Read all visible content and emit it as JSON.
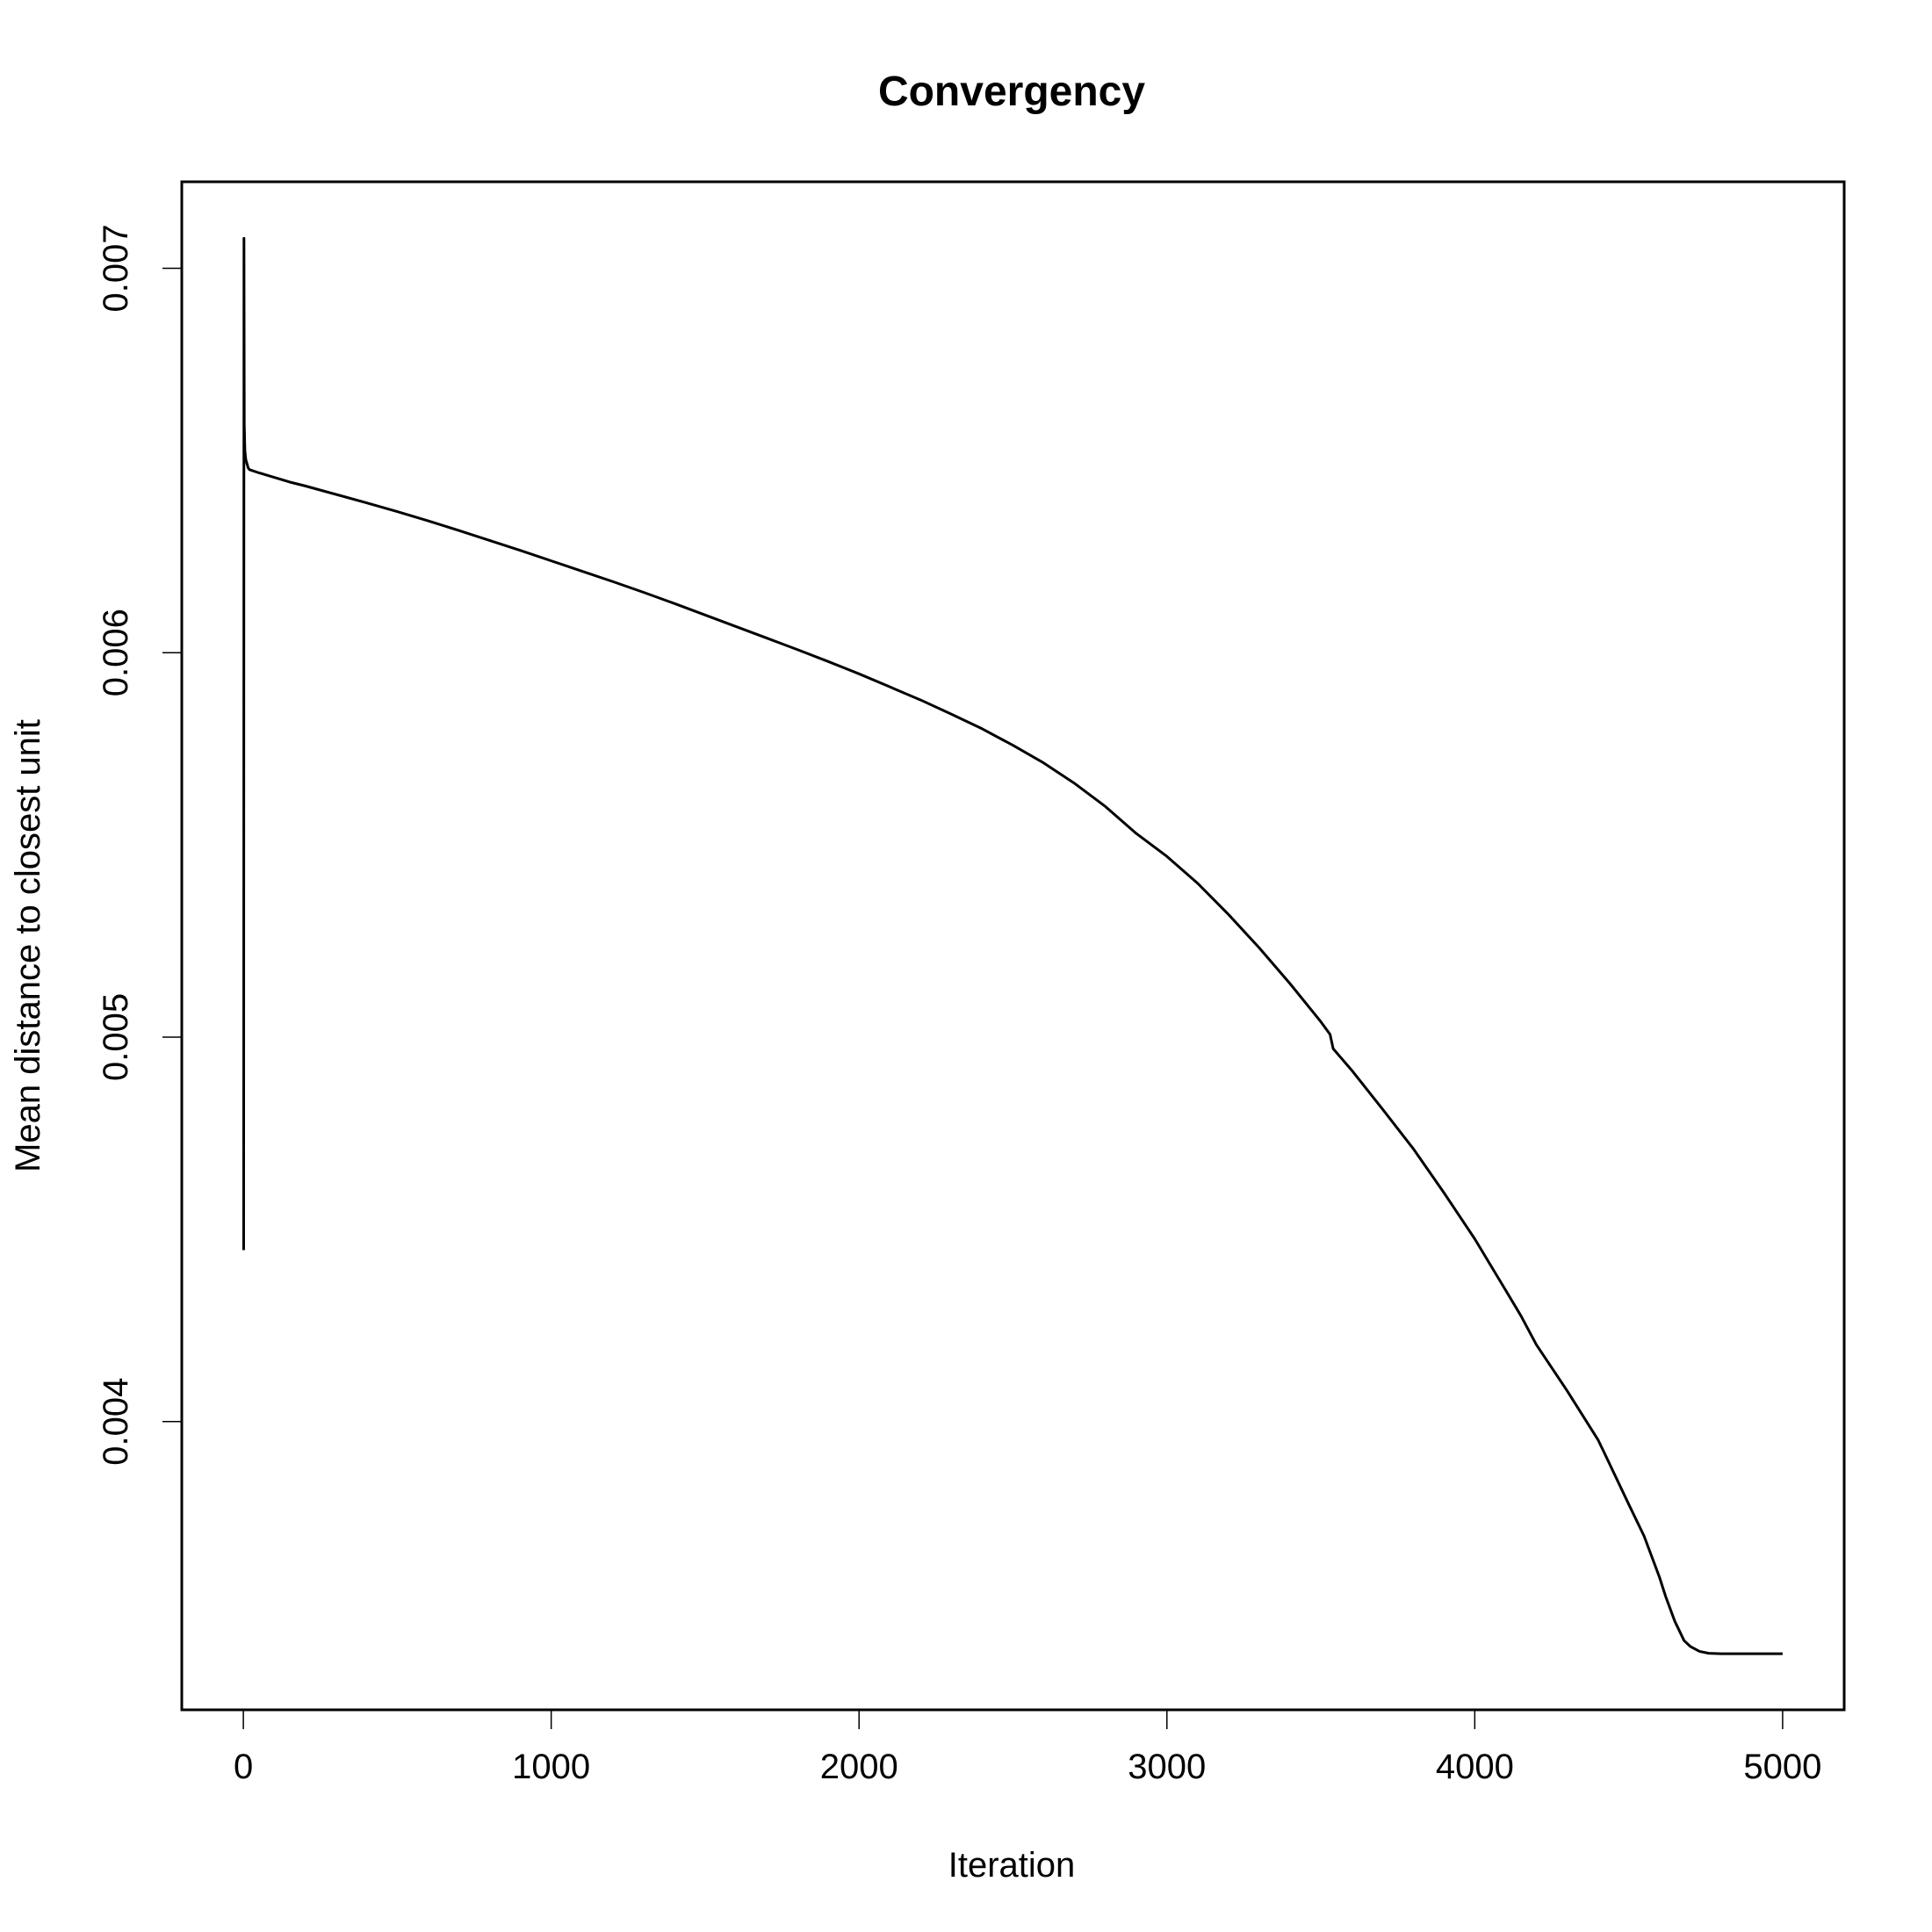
{
  "chart_data": {
    "type": "line",
    "title": "Convergency",
    "xlabel": "Iteration",
    "ylabel": "Mean distance to closest unit",
    "xlim": [
      -200,
      5200
    ],
    "ylim": [
      0.00325,
      0.007225
    ],
    "x_ticks": [
      0,
      1000,
      2000,
      3000,
      4000,
      5000
    ],
    "x_tick_labels": [
      "0",
      "1000",
      "2000",
      "3000",
      "4000",
      "5000"
    ],
    "y_ticks": [
      0.004,
      0.005,
      0.006,
      0.007
    ],
    "y_tick_labels": [
      "0.004",
      "0.005",
      "0.006",
      "0.007"
    ],
    "grid": false,
    "series": [
      {
        "color": "#000000",
        "x": [
          1,
          2,
          3,
          5,
          8,
          12,
          16,
          20,
          50,
          100,
          150,
          200,
          300,
          400,
          500,
          600,
          700,
          800,
          900,
          1000,
          1100,
          1200,
          1300,
          1400,
          1500,
          1600,
          1700,
          1800,
          1900,
          2000,
          2100,
          2200,
          2300,
          2400,
          2500,
          2600,
          2700,
          2800,
          2900,
          3000,
          3100,
          3200,
          3300,
          3400,
          3500,
          3530,
          3540,
          3600,
          3700,
          3800,
          3900,
          4000,
          4100,
          4150,
          4200,
          4300,
          4400,
          4420,
          4500,
          4550,
          4600,
          4620,
          4650,
          4680,
          4700,
          4730,
          4760,
          4800,
          4900,
          5000
        ],
        "y": [
          0.004446,
          0.007078,
          0.006594,
          0.006525,
          0.006502,
          0.006491,
          0.00648,
          0.006476,
          0.006468,
          0.006456,
          0.006444,
          0.006434,
          0.006412,
          0.00639,
          0.006367,
          0.006343,
          0.006318,
          0.006292,
          0.006266,
          0.006239,
          0.006212,
          0.006185,
          0.006157,
          0.006128,
          0.006098,
          0.006068,
          0.006038,
          0.006008,
          0.005977,
          0.005945,
          0.005911,
          0.005877,
          0.00584,
          0.005802,
          0.005759,
          0.005713,
          0.00566,
          0.0056,
          0.00553,
          0.00547,
          0.0054,
          0.005319,
          0.005232,
          0.005139,
          0.00504,
          0.005007,
          0.00497,
          0.004914,
          0.004813,
          0.00471,
          0.004595,
          0.004475,
          0.004342,
          0.004275,
          0.0042,
          0.00408,
          0.003953,
          0.00392,
          0.003785,
          0.003702,
          0.003595,
          0.003545,
          0.00348,
          0.00343,
          0.003415,
          0.003402,
          0.003397,
          0.003396,
          0.003396,
          0.003396
        ]
      }
    ]
  }
}
